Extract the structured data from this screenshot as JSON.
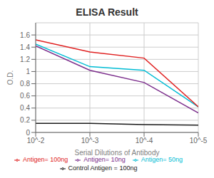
{
  "chart_data": {
    "type": "line",
    "title": "ELISA Result",
    "x_label": "Serial Dilutions  of Antibody",
    "y_label": "O.D.",
    "x": [
      0.01,
      0.001,
      0.0001,
      1e-05
    ],
    "xlim": [
      0.01,
      1e-05
    ],
    "xticks": [
      {
        "value": 0.01,
        "label": "10^-2"
      },
      {
        "value": 0.001,
        "label": "10^-3"
      },
      {
        "value": 0.0001,
        "label": "10^-4"
      },
      {
        "value": 1e-05,
        "label": "10^-5"
      }
    ],
    "ylim": [
      0,
      1.8
    ],
    "yticks": [
      0,
      0.2,
      0.4,
      0.6,
      0.8,
      1,
      1.2,
      1.4,
      1.6
    ],
    "log": "x",
    "grid": true,
    "legend": "bottom",
    "series": [
      {
        "name": "Control Antigen = 100ng",
        "color": "#1a1a1a",
        "values": [
          0.15,
          0.15,
          0.13,
          0.12
        ]
      },
      {
        "name": "Antigen= 10ng",
        "color": "#7b2d8b",
        "values": [
          1.42,
          1.02,
          0.82,
          0.32
        ]
      },
      {
        "name": "Antigen= 50ng",
        "color": "#00bcd4",
        "values": [
          1.45,
          1.08,
          1.02,
          0.42
        ]
      },
      {
        "name": "Antigen= 100ng",
        "color": "#e02020",
        "values": [
          1.52,
          1.32,
          1.22,
          0.42
        ]
      }
    ]
  }
}
